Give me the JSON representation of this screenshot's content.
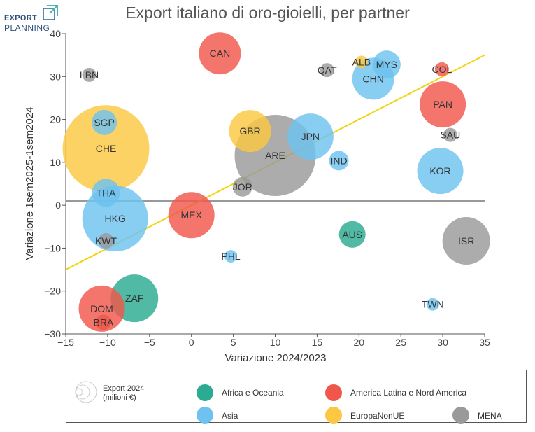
{
  "branding": {
    "logo_line1": "EXPORT",
    "logo_line2": "PLANNING"
  },
  "chart_data": {
    "type": "scatter",
    "title": "Export italiano di oro-gioielli, per partner",
    "xlabel": "Variazione 2024/2023",
    "ylabel": "Variazione 1sem2025-1sem2024",
    "xlim": [
      -15,
      35
    ],
    "ylim": [
      -30,
      40
    ],
    "xticks": [
      -15,
      -10,
      -5,
      0,
      5,
      10,
      15,
      20,
      25,
      30,
      35
    ],
    "yticks": [
      -30,
      -20,
      -10,
      0,
      10,
      20,
      30,
      40
    ],
    "xtick_labels": [
      "−15",
      "−10",
      "−5",
      "0",
      "5",
      "10",
      "15",
      "20",
      "25",
      "30",
      "35"
    ],
    "ytick_labels": [
      "−30",
      "−20",
      "−10",
      "0",
      "10",
      "20",
      "30",
      "40"
    ],
    "reference_line_y": 1,
    "trend_line": {
      "x": [
        -15,
        35
      ],
      "y": [
        -15,
        35
      ],
      "color": "#f2d40f"
    },
    "groups": [
      {
        "name": "Africa e Oceania",
        "color": "#2bab91"
      },
      {
        "name": "America Latina e Nord America",
        "color": "#f0574a"
      },
      {
        "name": "Asia",
        "color": "#6ec2ef"
      },
      {
        "name": "EuropaNonUE",
        "color": "#fcc843"
      },
      {
        "name": "MENA",
        "color": "#9a9a9a"
      }
    ],
    "size_legend": {
      "line1": "Export 2024",
      "line2": "(milioni €)"
    },
    "points": [
      {
        "label": "CHE",
        "x": -10.2,
        "y": 13.2,
        "group": 3,
        "size": 62
      },
      {
        "label": "ARE",
        "x": 10.0,
        "y": 11.6,
        "group": 4,
        "size": 58
      },
      {
        "label": "HKG",
        "x": -9.1,
        "y": -3.1,
        "group": 2,
        "size": 47
      },
      {
        "label": "ZAF",
        "x": -6.8,
        "y": -21.7,
        "group": 0,
        "size": 34
      },
      {
        "label": "ISR",
        "x": 32.8,
        "y": -8.3,
        "group": 4,
        "size": 34
      },
      {
        "label": "KOR",
        "x": 29.7,
        "y": 8.0,
        "group": 2,
        "size": 33
      },
      {
        "label": "DOM",
        "x": -10.7,
        "y": -24.1,
        "group": 1,
        "size": 33
      },
      {
        "label": "PAN",
        "x": 30.0,
        "y": 23.5,
        "group": 1,
        "size": 33
      },
      {
        "label": "MEX",
        "x": 0.0,
        "y": -2.3,
        "group": 1,
        "size": 33
      },
      {
        "label": "JPN",
        "x": 14.2,
        "y": 16.0,
        "group": 2,
        "size": 33
      },
      {
        "label": "GBR",
        "x": 7.0,
        "y": 17.3,
        "group": 3,
        "size": 30
      },
      {
        "label": "CHN",
        "x": 21.7,
        "y": 29.5,
        "group": 2,
        "size": 30
      },
      {
        "label": "CAN",
        "x": 3.4,
        "y": 35.4,
        "group": 1,
        "size": 30
      },
      {
        "label": "AUS",
        "x": 19.2,
        "y": -6.8,
        "group": 0,
        "size": 19
      },
      {
        "label": "THA",
        "x": -10.2,
        "y": 2.9,
        "group": 2,
        "size": 20
      },
      {
        "label": "MYS",
        "x": 23.3,
        "y": 32.8,
        "group": 2,
        "size": 20
      },
      {
        "label": "SGP",
        "x": -10.4,
        "y": 19.3,
        "group": 2,
        "size": 18
      },
      {
        "label": "IND",
        "x": 17.6,
        "y": 10.4,
        "group": 2,
        "size": 14
      },
      {
        "label": "JOR",
        "x": 6.1,
        "y": 4.3,
        "group": 4,
        "size": 14
      },
      {
        "label": "KWT",
        "x": -10.2,
        "y": -8.3,
        "group": 4,
        "size": 11
      },
      {
        "label": "BRA",
        "x": -10.5,
        "y": -27.3,
        "group": 1,
        "size": 11
      },
      {
        "label": "LBN",
        "x": -12.2,
        "y": 30.4,
        "group": 4,
        "size": 10
      },
      {
        "label": "QAT",
        "x": 16.2,
        "y": 31.5,
        "group": 4,
        "size": 10
      },
      {
        "label": "SAU",
        "x": 30.9,
        "y": 16.4,
        "group": 4,
        "size": 10
      },
      {
        "label": "COL",
        "x": 29.9,
        "y": 31.7,
        "group": 1,
        "size": 10
      },
      {
        "label": "TWN",
        "x": 28.8,
        "y": -23.1,
        "group": 2,
        "size": 9
      },
      {
        "label": "PHL",
        "x": 4.7,
        "y": -11.9,
        "group": 2,
        "size": 9
      },
      {
        "label": "ALB",
        "x": 20.3,
        "y": 33.4,
        "group": 3,
        "size": 9
      }
    ]
  }
}
